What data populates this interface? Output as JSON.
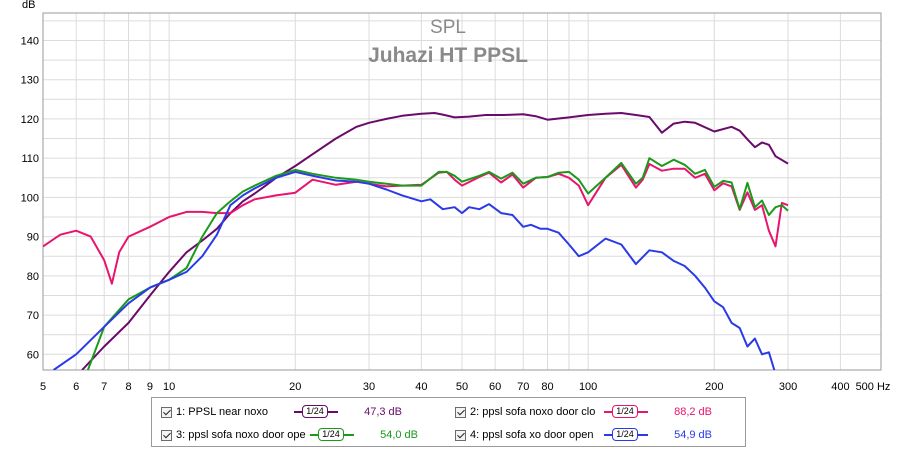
{
  "chart_data": {
    "type": "line",
    "title": "SPL",
    "subtitle": "Juhazi HT PPSL",
    "ylabel": "dB",
    "xunit": "Hz",
    "xscale": "log",
    "xlim": [
      5,
      500
    ],
    "ylim": [
      56,
      147
    ],
    "grid": true,
    "x_tick_labels": [
      "5",
      "6",
      "7",
      "8",
      "9",
      "10",
      "20",
      "30",
      "40",
      "50",
      "60",
      "70",
      "80",
      "100",
      "200",
      "300",
      "400",
      "500 Hz"
    ],
    "y_tick_labels": [
      "60",
      "70",
      "80",
      "90",
      "100",
      "110",
      "120",
      "130",
      "140"
    ],
    "series": [
      {
        "name": "1: PPSL near noxo",
        "color": "#6a0a6a",
        "x": [
          6.2,
          7,
          8,
          9,
          10,
          11,
          12,
          13,
          14,
          15,
          16,
          17,
          18,
          20,
          22,
          25,
          28,
          30,
          33,
          36,
          40,
          43,
          45,
          48,
          52,
          57,
          63,
          70,
          75,
          80,
          90,
          100,
          110,
          120,
          130,
          140,
          150,
          160,
          170,
          180,
          200,
          220,
          230,
          240,
          250,
          260,
          270,
          280,
          300
        ],
        "y": [
          56,
          62,
          68,
          75,
          81,
          86,
          89,
          92,
          96,
          99,
          101,
          103,
          105,
          108,
          111,
          115,
          118,
          119,
          120,
          120.8,
          121.3,
          121.5,
          121.1,
          120.4,
          120.6,
          121,
          121,
          121.2,
          120.7,
          119.8,
          120.4,
          121,
          121.3,
          121.5,
          121,
          120.5,
          116.5,
          118.8,
          119.3,
          119,
          116.8,
          118,
          117,
          114.8,
          112.8,
          114,
          113.4,
          110.5,
          108.6
        ]
      },
      {
        "name": "2: ppsl sofa noxo door clo",
        "color": "#e8146e",
        "x": [
          5,
          5.5,
          6,
          6.5,
          7,
          7.3,
          7.6,
          8,
          9,
          10,
          11,
          12,
          13,
          14,
          15,
          16,
          18,
          20,
          22,
          25,
          28,
          30,
          33,
          36,
          40,
          44,
          46,
          48,
          50,
          55,
          58,
          62,
          66,
          70,
          75,
          80,
          85,
          90,
          95,
          100,
          110,
          120,
          130,
          135,
          140,
          150,
          160,
          170,
          180,
          190,
          200,
          210,
          220,
          230,
          240,
          250,
          260,
          270,
          280,
          290,
          300
        ],
        "y": [
          87.5,
          90.5,
          91.5,
          90,
          84,
          78,
          86,
          90,
          92.5,
          95,
          96.3,
          96.3,
          96,
          96,
          98,
          99.5,
          100.5,
          101.2,
          104.5,
          103.2,
          104,
          103.5,
          102.8,
          103,
          103.2,
          106.3,
          106.5,
          104.5,
          103,
          105.2,
          106.3,
          103.8,
          105.8,
          102.5,
          105,
          105.2,
          106,
          105,
          103,
          98,
          105,
          108.3,
          102.5,
          104.5,
          108.5,
          106.8,
          107.3,
          107.3,
          105,
          106,
          101.8,
          103.6,
          102.8,
          96.8,
          101.3,
          96.8,
          98,
          91.5,
          87.5,
          98.6,
          98
        ]
      },
      {
        "name": "3: ppsl sofa noxo door ope",
        "color": "#1a9a1a",
        "x": [
          6.4,
          7,
          8,
          9,
          10,
          11,
          12,
          13,
          14,
          15,
          16,
          18,
          20,
          22,
          25,
          28,
          30,
          33,
          36,
          40,
          44,
          46,
          48,
          50,
          55,
          58,
          62,
          66,
          70,
          75,
          80,
          85,
          90,
          95,
          100,
          110,
          120,
          130,
          135,
          140,
          150,
          160,
          170,
          180,
          190,
          200,
          210,
          220,
          230,
          240,
          250,
          260,
          270,
          280,
          290,
          300
        ],
        "y": [
          56,
          67,
          74,
          77,
          79,
          82,
          90,
          96,
          99,
          101.5,
          103,
          105.5,
          107,
          106,
          105,
          104.5,
          104,
          103.5,
          103,
          103,
          106.5,
          106.5,
          105.5,
          104,
          105.5,
          106.5,
          104.8,
          106.3,
          103.5,
          105,
          105.2,
          106.3,
          106.5,
          104.5,
          101,
          105,
          108.8,
          103.5,
          105,
          110,
          108,
          109.6,
          108.3,
          106,
          107,
          102.7,
          104.2,
          103.8,
          97,
          103.7,
          97.5,
          99.2,
          95.5,
          97.5,
          98,
          96.6
        ]
      },
      {
        "name": "4: ppsl sofa xo door open",
        "color": "#2a3ae8",
        "x": [
          5.3,
          6,
          7,
          8,
          9,
          10,
          11,
          12,
          13,
          14,
          15,
          16,
          18,
          20,
          22,
          25,
          28,
          30,
          33,
          36,
          40,
          42,
          45,
          48,
          50,
          52,
          55,
          58,
          62,
          66,
          70,
          73,
          77,
          80,
          85,
          90,
          95,
          100,
          110,
          120,
          130,
          140,
          150,
          160,
          170,
          180,
          190,
          200,
          210,
          220,
          230,
          240,
          250,
          260,
          270,
          280
        ],
        "y": [
          56,
          60,
          67,
          73,
          77,
          79,
          81,
          85,
          90.5,
          98,
          100.5,
          102.3,
          105,
          106.5,
          105.5,
          104.3,
          104,
          103.5,
          102,
          100.5,
          99,
          99.5,
          97,
          97.5,
          96,
          97.5,
          97,
          98.3,
          96,
          95.5,
          92.5,
          93,
          92,
          92,
          91,
          88,
          85,
          86,
          89.5,
          88,
          83,
          86.5,
          86,
          83.8,
          82.5,
          80,
          77,
          73.5,
          72,
          68,
          66.7,
          62,
          64,
          60,
          60.5,
          55
        ]
      }
    ]
  },
  "legend": [
    {
      "label": "1: PPSL near noxo",
      "smoothing": "1/24",
      "level": "47,3 dB",
      "color": "#6a0a6a"
    },
    {
      "label": "2: ppsl sofa noxo door clo",
      "smoothing": "1/24",
      "level": "88,2 dB",
      "color": "#e8146e"
    },
    {
      "label": "3: ppsl sofa noxo door ope",
      "smoothing": "1/24",
      "level": "54,0 dB",
      "color": "#1a9a1a"
    },
    {
      "label": "4: ppsl sofa xo door open",
      "smoothing": "1/24",
      "level": "54,9 dB",
      "color": "#2a3ae8"
    }
  ]
}
